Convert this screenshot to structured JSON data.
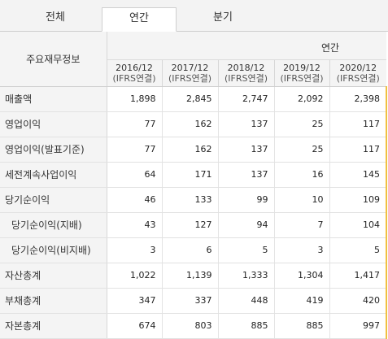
{
  "tabs": [
    {
      "label": "전체",
      "active": false
    },
    {
      "label": "연간",
      "active": true
    },
    {
      "label": "분기",
      "active": false
    }
  ],
  "table": {
    "corner_label": "주요재무정보",
    "period_label": "연간",
    "columns": [
      {
        "year": "2016/12",
        "basis": "(IFRS연결)"
      },
      {
        "year": "2017/12",
        "basis": "(IFRS연결)"
      },
      {
        "year": "2018/12",
        "basis": "(IFRS연결)"
      },
      {
        "year": "2019/12",
        "basis": "(IFRS연결)"
      },
      {
        "year": "2020/12",
        "basis": "(IFRS연결)"
      }
    ],
    "rows": [
      {
        "label": "매출액",
        "values": [
          "1,898",
          "2,845",
          "2,747",
          "2,092",
          "2,398"
        ]
      },
      {
        "label": "영업이익",
        "values": [
          "77",
          "162",
          "137",
          "25",
          "117"
        ]
      },
      {
        "label": "영업이익(발표기준)",
        "values": [
          "77",
          "162",
          "137",
          "25",
          "117"
        ]
      },
      {
        "label": "세전계속사업이익",
        "values": [
          "64",
          "171",
          "137",
          "16",
          "145"
        ]
      },
      {
        "label": "당기순이익",
        "values": [
          "46",
          "133",
          "99",
          "10",
          "109"
        ]
      },
      {
        "label": "당기순이익(지배)",
        "values": [
          "43",
          "127",
          "94",
          "7",
          "104"
        ]
      },
      {
        "label": "당기순이익(비지배)",
        "values": [
          "3",
          "6",
          "5",
          "3",
          "5"
        ]
      },
      {
        "label": "자산총계",
        "values": [
          "1,022",
          "1,139",
          "1,333",
          "1,304",
          "1,417"
        ]
      },
      {
        "label": "부채총계",
        "values": [
          "347",
          "337",
          "448",
          "419",
          "420"
        ]
      },
      {
        "label": "자본총계",
        "values": [
          "674",
          "803",
          "885",
          "885",
          "997"
        ]
      }
    ]
  }
}
